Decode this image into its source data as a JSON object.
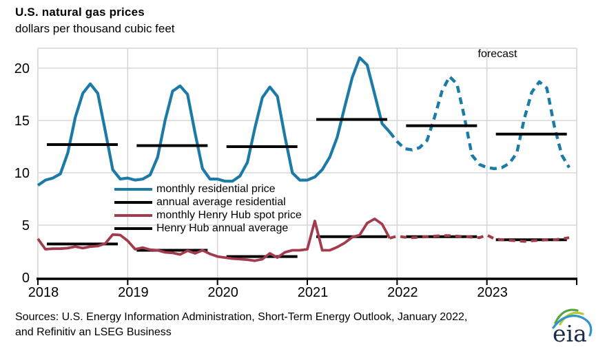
{
  "header": {
    "title": "U.S. natural gas prices",
    "subtitle": "dollars per thousand cubic feet"
  },
  "chart_data": {
    "type": "line",
    "title": "U.S. natural gas prices",
    "ylabel": "dollars per thousand cubic feet",
    "ylim": [
      0,
      22
    ],
    "yticks": [
      0,
      5,
      10,
      15,
      20
    ],
    "years": [
      "2018",
      "2019",
      "2020",
      "2021",
      "2022",
      "2023"
    ],
    "grid": "on",
    "forecast_label": "forecast",
    "forecast_start_month_index": 48,
    "months_per_year": 12,
    "series": [
      {
        "name": "monthly residential price",
        "kind": "monthly",
        "color": "#1b7aa6",
        "values": [
          8.8,
          9.3,
          9.5,
          9.9,
          11.9,
          15.3,
          17.6,
          18.5,
          17.6,
          14.0,
          10.3,
          9.4,
          9.5,
          9.3,
          9.4,
          9.8,
          11.5,
          15.0,
          17.8,
          18.3,
          17.5,
          13.8,
          10.4,
          9.4,
          9.4,
          9.2,
          9.2,
          9.7,
          11.0,
          14.3,
          17.2,
          18.2,
          17.3,
          13.5,
          10.0,
          9.3,
          9.3,
          9.6,
          10.3,
          11.5,
          13.4,
          16.3,
          19.1,
          21.0,
          20.3,
          17.5,
          14.7,
          13.9,
          13.0,
          12.3,
          12.2,
          12.4,
          13.1,
          15.3,
          17.8,
          19.2,
          18.5,
          15.3,
          11.7,
          10.8,
          10.5,
          10.4,
          10.5,
          10.9,
          11.9,
          15.2,
          17.7,
          18.7,
          18.1,
          14.5,
          11.7,
          10.5
        ]
      },
      {
        "name": "annual average residential",
        "kind": "annual-average",
        "color": "#000000",
        "values": [
          12.7,
          12.6,
          12.5,
          15.1,
          14.5,
          13.7
        ]
      },
      {
        "name": "monthly Henry Hub spot price",
        "kind": "monthly",
        "color": "#a23b4b",
        "values": [
          3.7,
          2.7,
          2.75,
          2.75,
          2.8,
          2.95,
          2.8,
          2.95,
          3.0,
          3.25,
          4.1,
          4.05,
          3.5,
          2.7,
          2.85,
          2.65,
          2.6,
          2.4,
          2.35,
          2.2,
          2.55,
          2.3,
          2.6,
          2.25,
          2.0,
          1.9,
          1.8,
          1.75,
          1.7,
          1.6,
          1.75,
          2.3,
          1.9,
          2.4,
          2.6,
          2.6,
          2.7,
          5.4,
          2.6,
          2.6,
          2.9,
          3.3,
          3.85,
          4.05,
          5.2,
          5.6,
          5.1,
          3.75,
          3.95,
          3.85,
          3.8,
          3.85,
          3.9,
          3.95,
          4.0,
          4.0,
          3.95,
          3.9,
          3.85,
          3.8,
          4.05,
          3.7,
          3.6,
          3.55,
          3.5,
          3.45,
          3.5,
          3.55,
          3.6,
          3.6,
          3.7,
          3.8
        ]
      },
      {
        "name": "Henry Hub annual average",
        "kind": "annual-average",
        "color": "#000000",
        "values": [
          3.2,
          2.6,
          2.0,
          3.9,
          3.9,
          3.6
        ]
      }
    ],
    "colors": {
      "residential": "#1b7aa6",
      "henry_hub": "#a23b4b",
      "average": "#000000",
      "grid": "#d6d6d6",
      "axis": "#000000"
    }
  },
  "legend": {
    "items": [
      {
        "label": "monthly residential price",
        "color": "#1b7aa6"
      },
      {
        "label": "annual average residential",
        "color": "#000000"
      },
      {
        "label": "monthly Henry Hub spot price",
        "color": "#a23b4b"
      },
      {
        "label": "Henry Hub annual average",
        "color": "#000000"
      }
    ]
  },
  "annotations": {
    "forecast": "forecast"
  },
  "footer": {
    "sources_line1": "Sources: U.S. Energy Information Administration, Short-Term Energy Outlook, January 2022,",
    "sources_line2": "and Refinitiv an LSEG Business",
    "logo_text": "eia"
  }
}
